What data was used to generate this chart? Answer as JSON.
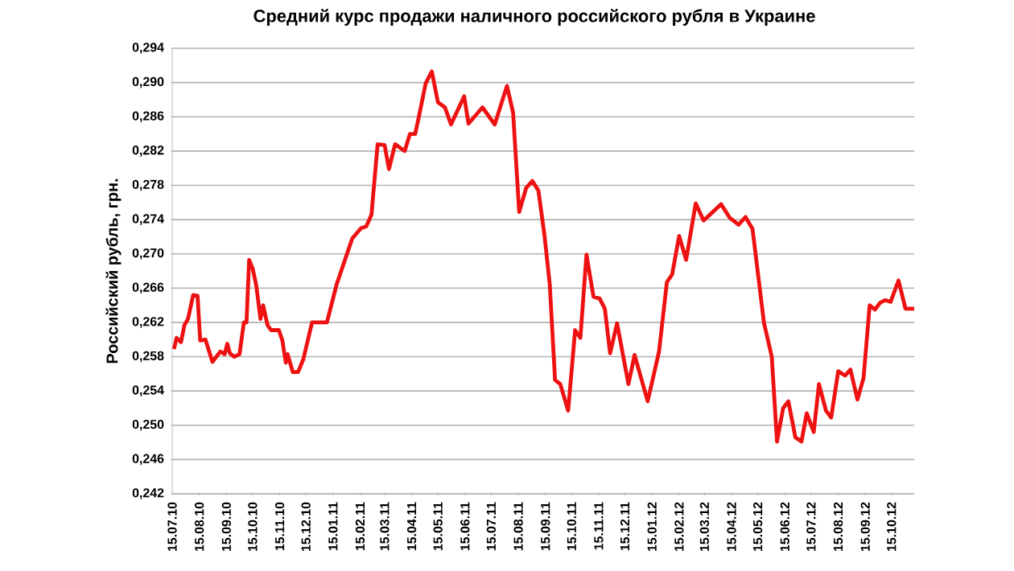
{
  "chart_data": {
    "type": "line",
    "title": "Средний курс продажи наличного российского рубля в Украине",
    "ylabel": "Российский рубль, грн.",
    "grid": "y",
    "line_style": "solid",
    "xlim": [
      "2010-07-15",
      "2012-11-10"
    ],
    "ylim": [
      0.242,
      0.294
    ],
    "yticks": [
      {
        "value": 0.242,
        "label": "0,242"
      },
      {
        "value": 0.246,
        "label": "0,246"
      },
      {
        "value": 0.25,
        "label": "0,250"
      },
      {
        "value": 0.254,
        "label": "0,254"
      },
      {
        "value": 0.258,
        "label": "0,258"
      },
      {
        "value": 0.262,
        "label": "0,262"
      },
      {
        "value": 0.266,
        "label": "0,266"
      },
      {
        "value": 0.27,
        "label": "0,270"
      },
      {
        "value": 0.274,
        "label": "0,274"
      },
      {
        "value": 0.278,
        "label": "0,278"
      },
      {
        "value": 0.282,
        "label": "0,282"
      },
      {
        "value": 0.286,
        "label": "0,286"
      },
      {
        "value": 0.29,
        "label": "0,290"
      },
      {
        "value": 0.294,
        "label": "0,294"
      }
    ],
    "xticks": [
      {
        "value": "2010-07-15",
        "label": "15.07.10"
      },
      {
        "value": "2010-08-15",
        "label": "15.08.10"
      },
      {
        "value": "2010-09-15",
        "label": "15.09.10"
      },
      {
        "value": "2010-10-15",
        "label": "15.10.10"
      },
      {
        "value": "2010-11-15",
        "label": "15.11.10"
      },
      {
        "value": "2010-12-15",
        "label": "15.12.10"
      },
      {
        "value": "2011-01-15",
        "label": "15.01.11"
      },
      {
        "value": "2011-02-15",
        "label": "15.02.11"
      },
      {
        "value": "2011-03-15",
        "label": "15.03.11"
      },
      {
        "value": "2011-04-15",
        "label": "15.04.11"
      },
      {
        "value": "2011-05-15",
        "label": "15.05.11"
      },
      {
        "value": "2011-06-15",
        "label": "15.06.11"
      },
      {
        "value": "2011-07-15",
        "label": "15.07.11"
      },
      {
        "value": "2011-08-15",
        "label": "15.08.11"
      },
      {
        "value": "2011-09-15",
        "label": "15.09.11"
      },
      {
        "value": "2011-10-15",
        "label": "15.10.11"
      },
      {
        "value": "2011-11-15",
        "label": "15.11.11"
      },
      {
        "value": "2011-12-15",
        "label": "15.12.11"
      },
      {
        "value": "2012-01-15",
        "label": "15.01.12"
      },
      {
        "value": "2012-02-15",
        "label": "15.02.12"
      },
      {
        "value": "2012-03-15",
        "label": "15.03.12"
      },
      {
        "value": "2012-04-15",
        "label": "15.04.12"
      },
      {
        "value": "2012-05-15",
        "label": "15.05.12"
      },
      {
        "value": "2012-06-15",
        "label": "15.06.12"
      },
      {
        "value": "2012-07-15",
        "label": "15.07.12"
      },
      {
        "value": "2012-08-15",
        "label": "15.08.12"
      },
      {
        "value": "2012-09-15",
        "label": "15.09.12"
      },
      {
        "value": "2012-10-15",
        "label": "15.10.12"
      }
    ],
    "x": [
      "2010-07-17",
      "2010-07-20",
      "2010-07-25",
      "2010-07-29",
      "2010-08-02",
      "2010-08-08",
      "2010-08-13",
      "2010-08-16",
      "2010-08-22",
      "2010-08-30",
      "2010-09-08",
      "2010-09-13",
      "2010-09-16",
      "2010-09-19",
      "2010-09-24",
      "2010-09-30",
      "2010-10-05",
      "2010-10-08",
      "2010-10-11",
      "2010-10-15",
      "2010-10-19",
      "2010-10-24",
      "2010-10-27",
      "2010-11-01",
      "2010-11-05",
      "2010-11-14",
      "2010-11-18",
      "2010-11-22",
      "2010-11-24",
      "2010-11-30",
      "2010-12-06",
      "2010-12-12",
      "2010-12-22",
      "2011-01-08",
      "2011-01-19",
      "2011-02-06",
      "2011-02-16",
      "2011-02-22",
      "2011-02-28",
      "2011-03-07",
      "2011-03-15",
      "2011-03-20",
      "2011-03-27",
      "2011-04-07",
      "2011-04-13",
      "2011-04-19",
      "2011-04-23",
      "2011-05-01",
      "2011-05-08",
      "2011-05-15",
      "2011-05-23",
      "2011-05-30",
      "2011-06-14",
      "2011-06-19",
      "2011-07-05",
      "2011-07-19",
      "2011-08-02",
      "2011-08-09",
      "2011-08-16",
      "2011-08-24",
      "2011-08-31",
      "2011-09-07",
      "2011-09-14",
      "2011-09-20",
      "2011-09-26",
      "2011-10-02",
      "2011-10-11",
      "2011-10-19",
      "2011-10-25",
      "2011-11-01",
      "2011-11-09",
      "2011-11-16",
      "2011-11-22",
      "2011-11-28",
      "2011-12-06",
      "2011-12-19",
      "2011-12-26",
      "2012-01-10",
      "2012-01-23",
      "2012-02-01",
      "2012-02-07",
      "2012-02-15",
      "2012-02-23",
      "2012-03-05",
      "2012-03-14",
      "2012-04-03",
      "2012-04-13",
      "2012-04-23",
      "2012-05-01",
      "2012-05-09",
      "2012-05-22",
      "2012-05-31",
      "2012-06-06",
      "2012-06-13",
      "2012-06-19",
      "2012-06-27",
      "2012-07-04",
      "2012-07-10",
      "2012-07-18",
      "2012-07-24",
      "2012-08-01",
      "2012-08-07",
      "2012-08-15",
      "2012-08-23",
      "2012-08-29",
      "2012-09-06",
      "2012-09-13",
      "2012-09-20",
      "2012-09-26",
      "2012-10-02",
      "2012-10-08",
      "2012-10-14",
      "2012-10-23",
      "2012-10-31",
      "2012-11-10"
    ],
    "series": [
      {
        "color": "#ee1111",
        "values": [
          0.2589,
          0.2602,
          0.2597,
          0.2617,
          0.2624,
          0.2652,
          0.2651,
          0.2599,
          0.26,
          0.2574,
          0.2586,
          0.2583,
          0.2595,
          0.2584,
          0.258,
          0.2583,
          0.262,
          0.262,
          0.2693,
          0.2683,
          0.2664,
          0.2624,
          0.264,
          0.2617,
          0.2611,
          0.2611,
          0.2599,
          0.2573,
          0.2583,
          0.2562,
          0.2562,
          0.2577,
          0.262,
          0.262,
          0.2664,
          0.2718,
          0.273,
          0.2732,
          0.2746,
          0.2828,
          0.2827,
          0.2799,
          0.2828,
          0.282,
          0.284,
          0.284,
          0.2859,
          0.2899,
          0.2913,
          0.2877,
          0.2871,
          0.2851,
          0.2884,
          0.2852,
          0.2871,
          0.2851,
          0.2896,
          0.2865,
          0.2749,
          0.2777,
          0.2785,
          0.2774,
          0.2721,
          0.2664,
          0.2553,
          0.2548,
          0.2517,
          0.2611,
          0.2602,
          0.2699,
          0.265,
          0.2648,
          0.2636,
          0.2584,
          0.2619,
          0.2548,
          0.2582,
          0.2528,
          0.2586,
          0.2667,
          0.2676,
          0.2721,
          0.2693,
          0.2759,
          0.2739,
          0.2758,
          0.2742,
          0.2734,
          0.2743,
          0.2729,
          0.262,
          0.258,
          0.2481,
          0.252,
          0.2528,
          0.2486,
          0.2481,
          0.2514,
          0.2492,
          0.2548,
          0.2517,
          0.2509,
          0.2563,
          0.2558,
          0.2565,
          0.253,
          0.2555,
          0.264,
          0.2635,
          0.2643,
          0.2646,
          0.2644,
          0.2669,
          0.2636,
          0.2636
        ]
      }
    ]
  }
}
